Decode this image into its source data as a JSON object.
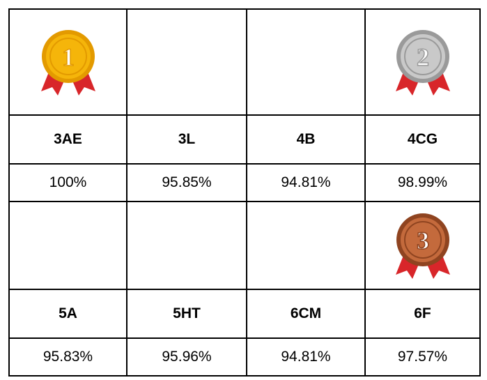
{
  "groups": [
    {
      "medals": [
        {
          "label": "1",
          "color": "#f5b50a",
          "rim": "#e39a00"
        },
        null,
        null,
        {
          "label": "2",
          "color": "#c9c9c9",
          "rim": "#9a9a9a"
        }
      ],
      "names": [
        "3AE",
        "3L",
        "4B",
        "4CG"
      ],
      "scores": [
        "100%",
        "95.85%",
        "94.81%",
        "98.99%"
      ]
    },
    {
      "medals": [
        null,
        null,
        null,
        {
          "label": "3",
          "color": "#c46a3c",
          "rim": "#8f4420"
        }
      ],
      "names": [
        "5A",
        "5HT",
        "6CM",
        "6F"
      ],
      "scores": [
        "95.83%",
        "95.96%",
        "94.81%",
        "97.57%"
      ]
    }
  ]
}
